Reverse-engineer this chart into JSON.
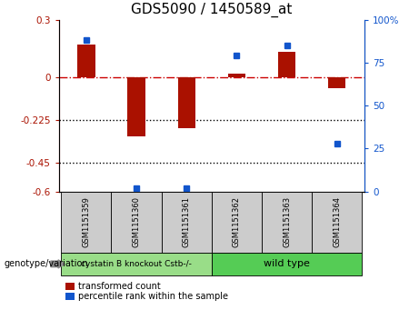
{
  "title": "GDS5090 / 1450589_at",
  "categories": [
    "GSM1151359",
    "GSM1151360",
    "GSM1151361",
    "GSM1151362",
    "GSM1151363",
    "GSM1151364"
  ],
  "red_values": [
    0.17,
    -0.31,
    -0.27,
    0.02,
    0.13,
    -0.06
  ],
  "blue_values": [
    88,
    2,
    2,
    79,
    85,
    28
  ],
  "ylim_left": [
    -0.6,
    0.3
  ],
  "ylim_right": [
    0,
    100
  ],
  "yticks_left": [
    0.3,
    0,
    -0.225,
    -0.45,
    -0.6
  ],
  "yticks_right": [
    100,
    75,
    50,
    25,
    0
  ],
  "red_color": "#aa1100",
  "blue_color": "#1155cc",
  "zero_line_color": "#cc0000",
  "dotted_line_color": "#000000",
  "group1_label": "cystatin B knockout Cstb-/-",
  "group2_label": "wild type",
  "group1_color": "#99dd88",
  "group2_color": "#55cc55",
  "legend_red": "transformed count",
  "legend_blue": "percentile rank within the sample",
  "genotype_label": "genotype/variation",
  "background_color": "#ffffff",
  "bar_width": 0.35,
  "sample_box_color": "#cccccc",
  "title_fontsize": 11
}
